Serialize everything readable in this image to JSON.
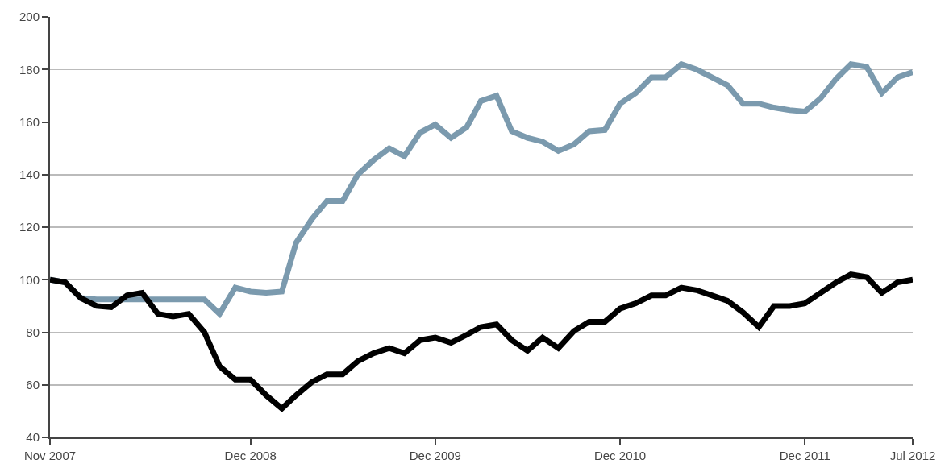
{
  "chart_data": {
    "type": "line",
    "x": [
      "2007-11",
      "2007-12",
      "2008-01",
      "2008-02",
      "2008-03",
      "2008-04",
      "2008-05",
      "2008-06",
      "2008-07",
      "2008-08",
      "2008-09",
      "2008-10",
      "2008-11",
      "2008-12",
      "2009-01",
      "2009-02",
      "2009-03",
      "2009-04",
      "2009-05",
      "2009-06",
      "2009-07",
      "2009-08",
      "2009-09",
      "2009-10",
      "2009-11",
      "2009-12",
      "2010-01",
      "2010-02",
      "2010-03",
      "2010-04",
      "2010-05",
      "2010-06",
      "2010-07",
      "2010-08",
      "2010-09",
      "2010-10",
      "2010-11",
      "2010-12",
      "2011-01",
      "2011-02",
      "2011-03",
      "2011-04",
      "2011-05",
      "2011-06",
      "2011-07",
      "2011-08",
      "2011-09",
      "2011-10",
      "2011-11",
      "2011-12",
      "2012-01",
      "2012-02",
      "2012-03",
      "2012-04",
      "2012-05",
      "2012-06",
      "2012-07"
    ],
    "series": [
      {
        "color": "#7b9aae",
        "values": [
          100,
          99,
          93,
          92.5,
          92.5,
          92.5,
          92.5,
          92.5,
          92.5,
          92.5,
          92.5,
          87,
          97,
          95.5,
          95,
          95.5,
          114,
          123,
          130,
          130,
          140,
          145.5,
          150,
          147,
          156,
          159,
          154,
          158,
          168,
          170,
          156.5,
          154,
          152.5,
          149,
          151.5,
          156.5,
          157,
          167,
          171,
          177,
          177,
          182,
          180,
          177,
          174,
          167,
          167,
          165.5,
          164.5,
          164,
          169,
          176.5,
          182,
          181,
          171,
          177,
          179
        ]
      },
      {
        "color": "#000000",
        "values": [
          100,
          99,
          93,
          90,
          89.5,
          94,
          95,
          87,
          86,
          87,
          80,
          67,
          62,
          62,
          56,
          51,
          56,
          61,
          64,
          64,
          69,
          72,
          74,
          72,
          77,
          78,
          76,
          79,
          82,
          83,
          77,
          73,
          78,
          74,
          80.5,
          84,
          84,
          89,
          91,
          94,
          94,
          97,
          96,
          94,
          92,
          87.5,
          82,
          90,
          90,
          91,
          95,
          99,
          102,
          101,
          95,
          99,
          100
        ]
      }
    ],
    "xlim": [
      "2007-11",
      "2012-07"
    ],
    "xticks": [
      {
        "value": "2007-11",
        "label": "Nov 2007"
      },
      {
        "value": "2008-12",
        "label": "Dec 2008"
      },
      {
        "value": "2009-12",
        "label": "Dec 2009"
      },
      {
        "value": "2010-12",
        "label": "Dec 2010"
      },
      {
        "value": "2011-12",
        "label": "Dec 2011"
      },
      {
        "value": "2012-07",
        "label": "Jul 2012"
      }
    ],
    "ylim": [
      40,
      200
    ],
    "yticks": [
      40,
      60,
      80,
      100,
      120,
      140,
      160,
      180,
      200
    ],
    "grid": "y",
    "marker": "none",
    "line_style": "solid"
  }
}
